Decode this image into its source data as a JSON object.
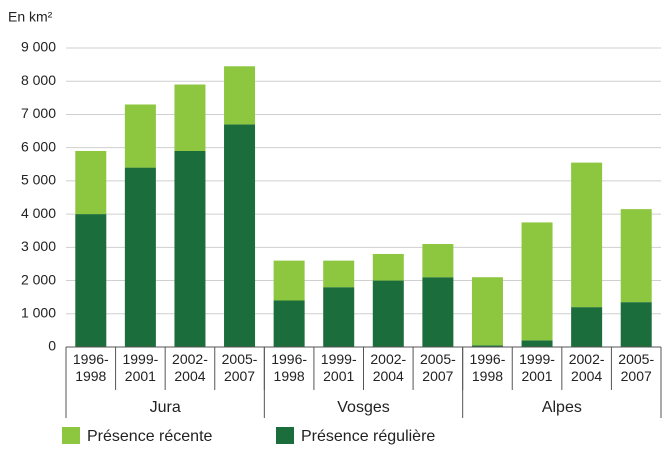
{
  "chart_data": {
    "type": "stacked_bar",
    "y_label": "En km²",
    "categories": [
      "1996-1998",
      "1999-2001",
      "2002-2004",
      "2005-2007",
      "1996-1998",
      "1999-2001",
      "2002-2004",
      "2005-2007",
      "1996-1998",
      "1999-2001",
      "2002-2004",
      "2005-2007"
    ],
    "groups": [
      "Jura",
      "Vosges",
      "Alpes"
    ],
    "series": [
      {
        "name": "Présence régulière",
        "color": "#1b6d3b",
        "values": [
          4000,
          5400,
          5900,
          6700,
          1400,
          1800,
          2000,
          2100,
          50,
          200,
          1200,
          1350
        ]
      },
      {
        "name": "Présence récente",
        "color": "#8dc63f",
        "values": [
          1900,
          1900,
          2000,
          1750,
          1200,
          800,
          800,
          1000,
          2050,
          3550,
          4350,
          2800
        ]
      }
    ],
    "legend_order": [
      1,
      0
    ],
    "ylim": [
      0,
      9000
    ],
    "yticks": [
      0,
      {
        "value": 1000,
        "label": "1 000"
      },
      {
        "value": 2000,
        "label": "2 000"
      },
      {
        "value": 3000,
        "label": "3 000"
      },
      {
        "value": 4000,
        "label": "4 000"
      },
      {
        "value": 5000,
        "label": "5 000"
      },
      {
        "value": 6000,
        "label": "6 000"
      },
      {
        "value": 7000,
        "label": "7 000"
      },
      {
        "value": 8000,
        "label": "8 000"
      },
      {
        "value": 9000,
        "label": "9 000"
      }
    ],
    "grid": true,
    "legend": "bottom"
  }
}
